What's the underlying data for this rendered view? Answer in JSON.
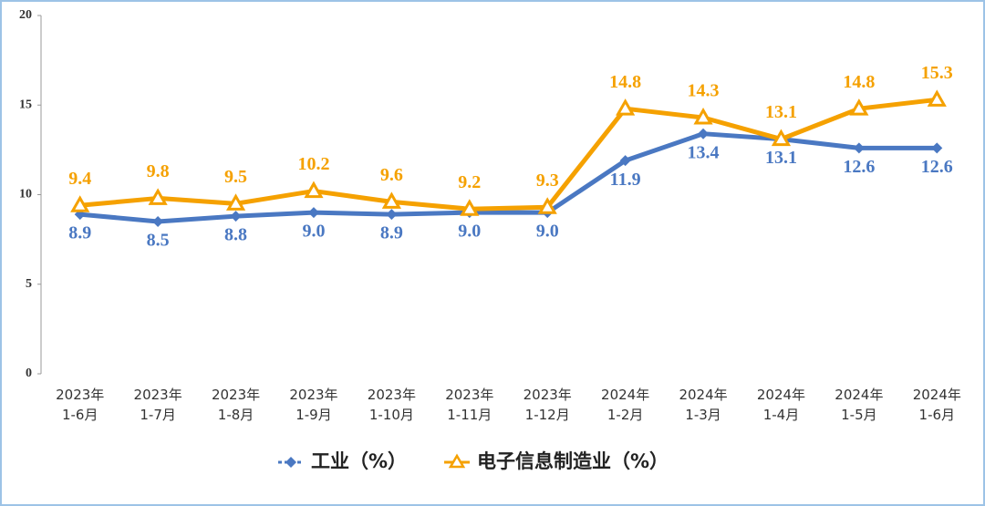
{
  "chart_data": {
    "type": "line",
    "categories": [
      "2023年\n1-6月",
      "2023年\n1-7月",
      "2023年\n1-8月",
      "2023年\n1-9月",
      "2023年\n1-10月",
      "2023年\n1-11月",
      "2023年\n1-12月",
      "2024年\n1-2月",
      "2024年\n1-3月",
      "2024年\n1-4月",
      "2024年\n1-5月",
      "2024年\n1-6月"
    ],
    "series": [
      {
        "name": "工业（%）",
        "color": "#4a78c2",
        "marker": "diamond",
        "label_position": "below",
        "values": [
          8.9,
          8.5,
          8.8,
          9.0,
          8.9,
          9.0,
          9.0,
          11.9,
          13.4,
          13.1,
          12.6,
          12.6
        ],
        "value_labels": [
          "8.9",
          "8.5",
          "8.8",
          "9.0",
          "8.9",
          "9.0",
          "9.0",
          "11.9",
          "13.4",
          "13.1",
          "12.6",
          "12.6"
        ]
      },
      {
        "name": "电子信息制造业（%）",
        "color": "#f5a100",
        "marker": "triangle",
        "label_position": "above",
        "values": [
          9.4,
          9.8,
          9.5,
          10.2,
          9.6,
          9.2,
          9.3,
          14.8,
          14.3,
          13.1,
          14.8,
          15.3
        ]
      }
    ],
    "ylim": [
      0,
      20
    ],
    "yticks": [
      0,
      5,
      10,
      15,
      20
    ],
    "grid": false,
    "legend": "bottom"
  }
}
